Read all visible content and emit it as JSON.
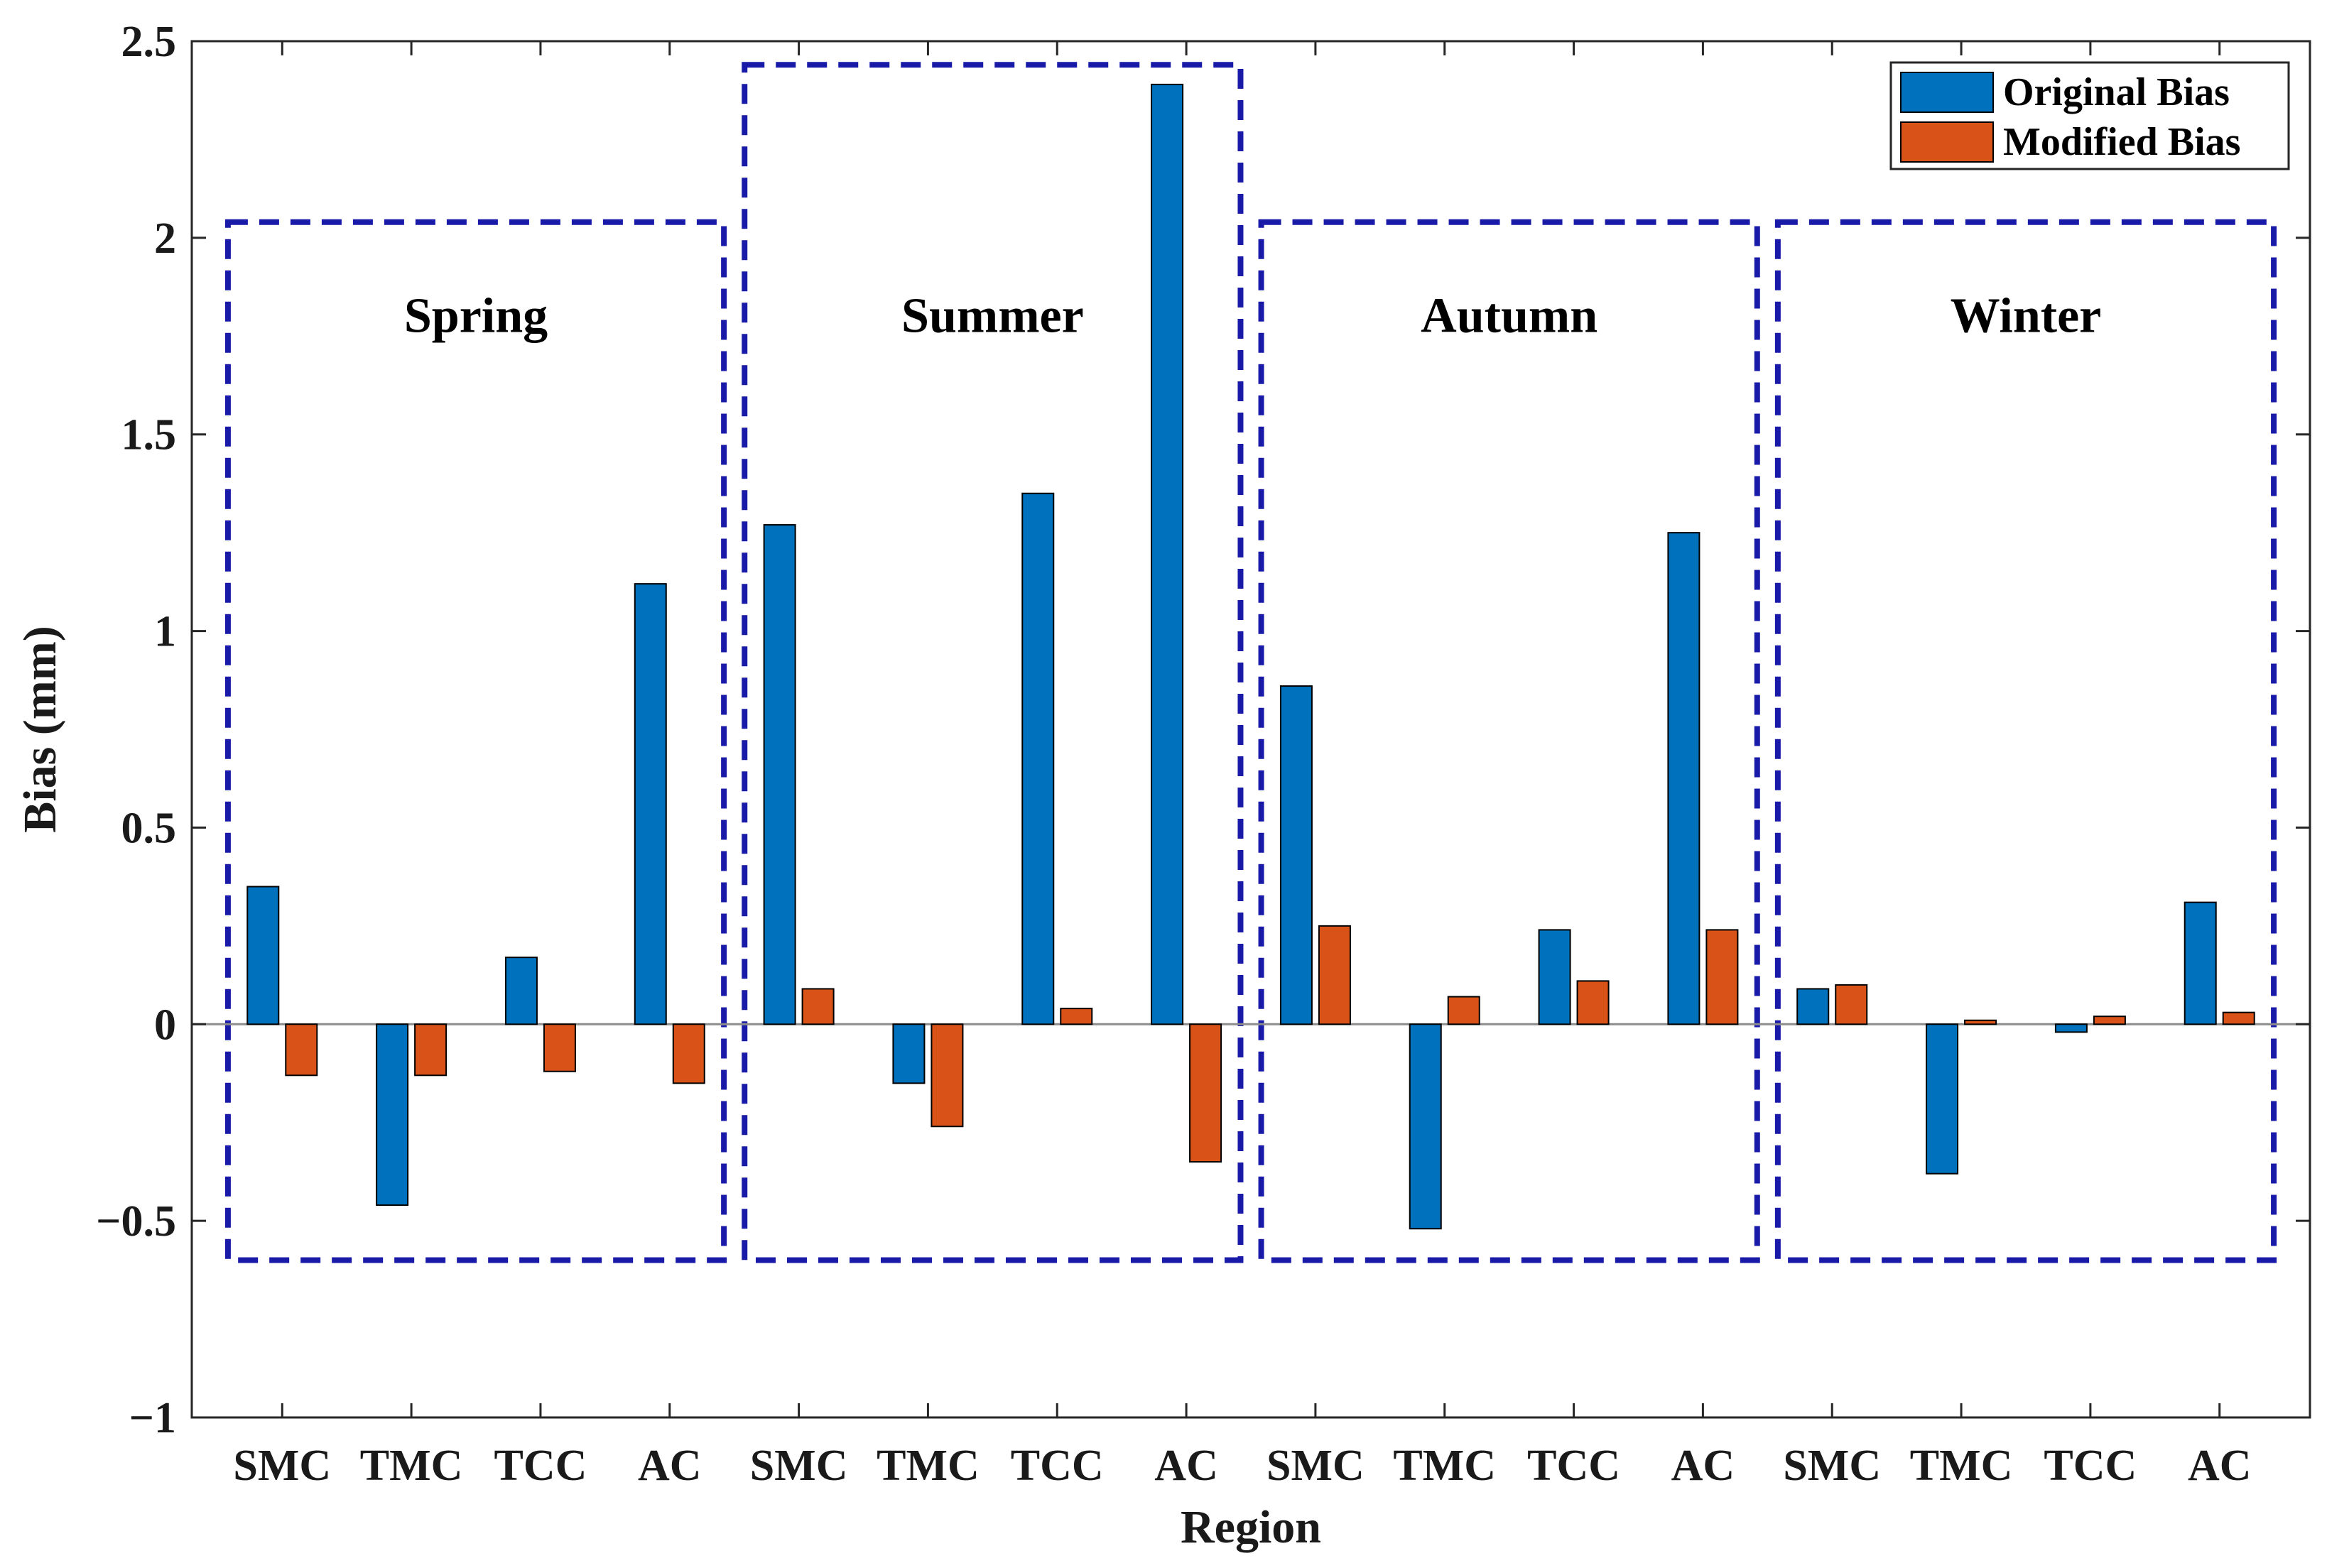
{
  "chart_data": {
    "type": "bar",
    "title": "",
    "xlabel": "Region",
    "ylabel": "Bias (mm)",
    "ylim": [
      -1,
      2.5
    ],
    "yticks": [
      -1,
      -0.5,
      0,
      0.5,
      1,
      1.5,
      2,
      2.5
    ],
    "ytick_labels": [
      "−1",
      "−0.5",
      "0",
      "0.5",
      "1",
      "1.5",
      "2",
      "2.5"
    ],
    "categories": [
      "SMC",
      "TMC",
      "TCC",
      "AC",
      "SMC",
      "TMC",
      "TCC",
      "AC",
      "SMC",
      "TMC",
      "TCC",
      "AC",
      "SMC",
      "TMC",
      "TCC",
      "AC"
    ],
    "groups": [
      {
        "name": "Spring",
        "start": 0,
        "end": 3
      },
      {
        "name": "Summer",
        "start": 4,
        "end": 7
      },
      {
        "name": "Autumn",
        "start": 8,
        "end": 11
      },
      {
        "name": "Winter",
        "start": 12,
        "end": 15
      }
    ],
    "group_box_ylim": [
      -0.6,
      2.04
    ],
    "group_box_ylim_tall": [
      -0.6,
      2.44
    ],
    "tall_group": "Summer",
    "series": [
      {
        "name": "Original Bias",
        "color": "#0072BD",
        "values": [
          0.35,
          -0.46,
          0.17,
          1.12,
          1.27,
          -0.15,
          1.35,
          2.39,
          0.86,
          -0.52,
          0.24,
          1.25,
          0.09,
          -0.38,
          -0.02,
          0.31
        ]
      },
      {
        "name": "Modified Bias",
        "color": "#D95319",
        "values": [
          -0.13,
          -0.13,
          -0.12,
          -0.15,
          0.09,
          -0.26,
          0.04,
          -0.35,
          0.25,
          0.07,
          0.11,
          0.24,
          0.1,
          0.01,
          0.02,
          0.03
        ]
      }
    ],
    "legend_position": "top-right",
    "box_color": "#1a1aa8",
    "grid": false
  }
}
